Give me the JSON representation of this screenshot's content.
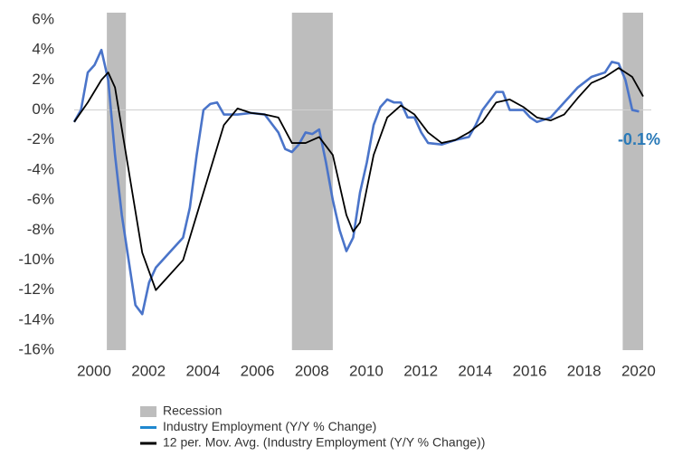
{
  "chart_data": {
    "type": "line",
    "xlim": [
      2000,
      2021.2
    ],
    "xticks": [
      2000,
      2002,
      2004,
      2006,
      2008,
      2010,
      2012,
      2014,
      2016,
      2018,
      2020
    ],
    "ylim": [
      -16,
      6
    ],
    "yticks": [
      {
        "value": 6,
        "label": "6%"
      },
      {
        "value": 4,
        "label": "4%"
      },
      {
        "value": 2,
        "label": "2%"
      },
      {
        "value": 0,
        "label": "0%"
      },
      {
        "value": -2,
        "label": "-2%"
      },
      {
        "value": -4,
        "label": "-4%"
      },
      {
        "value": -6,
        "label": "-6%"
      },
      {
        "value": -8,
        "label": "-8%"
      },
      {
        "value": -10,
        "label": "-10%"
      },
      {
        "value": -12,
        "label": "-12%"
      },
      {
        "value": -14,
        "label": "-14%"
      },
      {
        "value": -16,
        "label": "-16%"
      }
    ],
    "recessions": {
      "name": "Recession",
      "color": "#bdbdbd",
      "spans": [
        [
          2001.2,
          2001.9
        ],
        [
          2008.0,
          2009.5
        ],
        [
          2020.15,
          2020.9
        ]
      ]
    },
    "series": [
      {
        "name": "Industry Employment (Y/Y % Change)",
        "color": "#4a74c9",
        "legend_color": "#1f88cf",
        "x": [
          2000.0,
          2000.25,
          2000.5,
          2000.75,
          2001.0,
          2001.25,
          2001.5,
          2001.75,
          2002.0,
          2002.25,
          2002.5,
          2002.75,
          2003.0,
          2003.5,
          2004.0,
          2004.25,
          2004.5,
          2004.75,
          2005.0,
          2005.25,
          2005.5,
          2006.0,
          2006.5,
          2007.0,
          2007.5,
          2007.75,
          2008.0,
          2008.25,
          2008.5,
          2008.75,
          2009.0,
          2009.25,
          2009.5,
          2009.75,
          2010.0,
          2010.25,
          2010.5,
          2010.75,
          2011.0,
          2011.25,
          2011.5,
          2011.75,
          2012.0,
          2012.25,
          2012.5,
          2012.75,
          2013.0,
          2013.5,
          2014.0,
          2014.5,
          2014.75,
          2015.0,
          2015.5,
          2015.75,
          2016.0,
          2016.5,
          2016.75,
          2017.0,
          2017.5,
          2018.0,
          2018.5,
          2019.0,
          2019.5,
          2019.75,
          2020.0,
          2020.25,
          2020.5,
          2020.75
        ],
        "values": [
          -0.8,
          0,
          2.5,
          3,
          4,
          2,
          -3,
          -7,
          -10,
          -13,
          -13.6,
          -11.5,
          -10.5,
          -9.5,
          -8.5,
          -6.5,
          -3,
          0,
          0.4,
          0.5,
          -0.3,
          -0.3,
          -0.2,
          -0.3,
          -1.5,
          -2.6,
          -2.8,
          -2.3,
          -1.5,
          -1.6,
          -1.3,
          -3.5,
          -6,
          -8,
          -9.4,
          -8.5,
          -5.5,
          -3.5,
          -1,
          0.2,
          0.7,
          0.5,
          0.5,
          -0.5,
          -0.5,
          -1.5,
          -2.2,
          -2.3,
          -2,
          -1.8,
          -1,
          0,
          1.2,
          1.2,
          0,
          0,
          -0.5,
          -0.8,
          -0.5,
          0.5,
          1.5,
          2.2,
          2.5,
          3.2,
          3.1,
          2,
          0,
          -0.1
        ]
      },
      {
        "name": "12 per. Mov. Avg. (Industry Employment (Y/Y % Change))",
        "color": "#000000",
        "legend_color": "#000000",
        "x": [
          2000.0,
          2000.5,
          2001.0,
          2001.25,
          2001.5,
          2002.0,
          2002.5,
          2003.0,
          2003.25,
          2004.0,
          2004.5,
          2005.0,
          2005.5,
          2006.0,
          2006.5,
          2007.0,
          2007.5,
          2008.0,
          2008.5,
          2009.0,
          2009.5,
          2010.0,
          2010.25,
          2010.5,
          2011.0,
          2011.5,
          2012.0,
          2012.5,
          2013.0,
          2013.5,
          2014.0,
          2014.5,
          2015.0,
          2015.5,
          2016.0,
          2016.5,
          2017.0,
          2017.5,
          2018.0,
          2018.5,
          2019.0,
          2019.5,
          2020.0,
          2020.5,
          2020.9
        ],
        "values": [
          -0.8,
          0.5,
          2,
          2.5,
          1.5,
          -4,
          -9.5,
          -12,
          -11.5,
          -10,
          -7,
          -4,
          -1,
          0.1,
          -0.2,
          -0.3,
          -0.5,
          -2.2,
          -2.2,
          -1.8,
          -3,
          -7,
          -8.1,
          -7.5,
          -3,
          -0.5,
          0.3,
          -0.3,
          -1.5,
          -2.2,
          -2,
          -1.5,
          -0.8,
          0.5,
          0.7,
          0.2,
          -0.5,
          -0.7,
          -0.3,
          0.8,
          1.8,
          2.2,
          2.8,
          2.2,
          0.9
        ]
      }
    ],
    "annotations": [
      {
        "text": "-0.1%",
        "x": 2020.75,
        "y": -0.1,
        "color": "#2a7ab8"
      }
    ]
  }
}
